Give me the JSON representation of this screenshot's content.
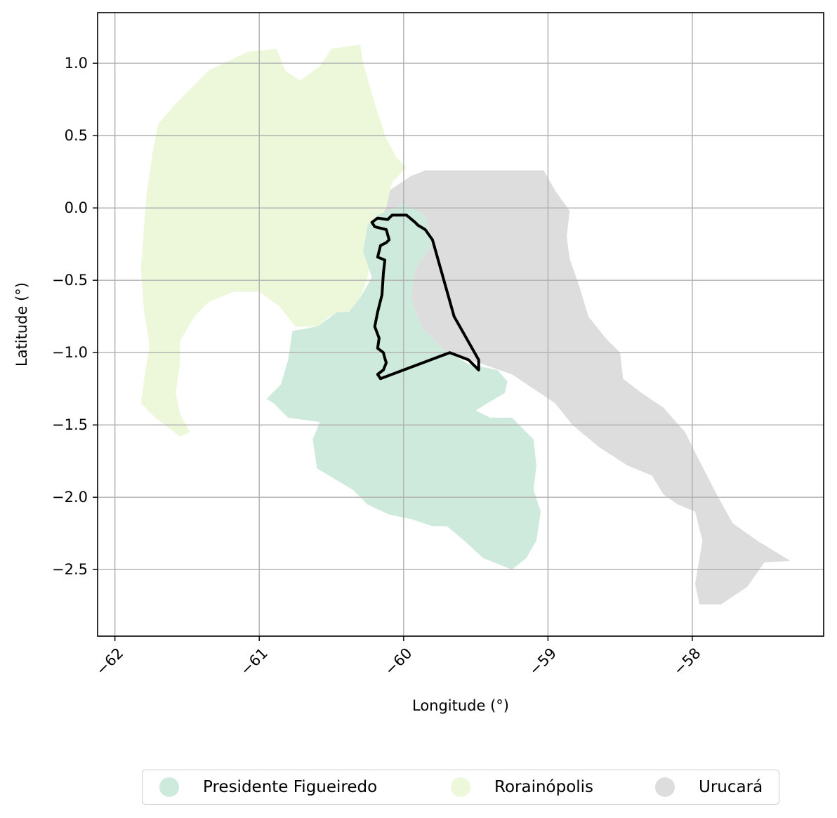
{
  "chart_data": {
    "type": "map",
    "xlabel": "Longitude (°)",
    "ylabel": "Latitude (°)",
    "xlim": [
      -62.12,
      -57.09
    ],
    "ylim": [
      -2.96,
      1.35
    ],
    "xticks": [
      -62,
      -61,
      -60,
      -59,
      -58
    ],
    "xtick_labels": [
      "−62",
      "−61",
      "−60",
      "−59",
      "−58"
    ],
    "yticks": [
      1.0,
      0.5,
      0.0,
      -0.5,
      -1.0,
      -1.5,
      -2.0,
      -2.5
    ],
    "ytick_labels": [
      "1.0",
      "0.5",
      "0.0",
      "−0.5",
      "−1.0",
      "−1.5",
      "−2.0",
      "−2.5"
    ],
    "grid": true,
    "legend_position": "bottom-center",
    "regions": [
      {
        "name": "Urucará",
        "color": "#dddddd",
        "polygon": [
          [
            -59.85,
            0.26
          ],
          [
            -59.03,
            0.26
          ],
          [
            -58.95,
            0.12
          ],
          [
            -58.85,
            -0.02
          ],
          [
            -58.87,
            -0.2
          ],
          [
            -58.85,
            -0.35
          ],
          [
            -58.78,
            -0.55
          ],
          [
            -58.72,
            -0.75
          ],
          [
            -58.6,
            -0.9
          ],
          [
            -58.5,
            -1.0
          ],
          [
            -58.48,
            -1.18
          ],
          [
            -58.35,
            -1.28
          ],
          [
            -58.2,
            -1.38
          ],
          [
            -58.05,
            -1.55
          ],
          [
            -57.95,
            -1.75
          ],
          [
            -57.82,
            -2.0
          ],
          [
            -57.72,
            -2.18
          ],
          [
            -57.55,
            -2.3
          ],
          [
            -57.32,
            -2.44
          ],
          [
            -57.5,
            -2.45
          ],
          [
            -57.62,
            -2.62
          ],
          [
            -57.8,
            -2.74
          ],
          [
            -57.95,
            -2.74
          ],
          [
            -57.98,
            -2.6
          ],
          [
            -57.93,
            -2.3
          ],
          [
            -57.98,
            -2.1
          ],
          [
            -58.1,
            -2.05
          ],
          [
            -58.2,
            -1.98
          ],
          [
            -58.28,
            -1.85
          ],
          [
            -58.45,
            -1.78
          ],
          [
            -58.65,
            -1.65
          ],
          [
            -58.83,
            -1.5
          ],
          [
            -58.95,
            -1.35
          ],
          [
            -59.1,
            -1.25
          ],
          [
            -59.25,
            -1.15
          ],
          [
            -59.45,
            -1.08
          ],
          [
            -59.7,
            -1.0
          ],
          [
            -59.88,
            -0.82
          ],
          [
            -59.95,
            -0.62
          ],
          [
            -59.92,
            -0.42
          ],
          [
            -59.8,
            -0.25
          ],
          [
            -59.85,
            -0.05
          ],
          [
            -60.0,
            0.02
          ],
          [
            -60.15,
            -0.05
          ],
          [
            -60.1,
            0.12
          ],
          [
            -59.95,
            0.22
          ]
        ]
      },
      {
        "name": "Rorainópolis",
        "color": "#edf8da",
        "polygon": [
          [
            -61.35,
            0.95
          ],
          [
            -61.08,
            1.08
          ],
          [
            -60.88,
            1.1
          ],
          [
            -60.82,
            0.95
          ],
          [
            -60.72,
            0.88
          ],
          [
            -60.58,
            0.98
          ],
          [
            -60.5,
            1.1
          ],
          [
            -60.3,
            1.13
          ],
          [
            -60.28,
            1.0
          ],
          [
            -60.2,
            0.72
          ],
          [
            -60.12,
            0.48
          ],
          [
            -60.05,
            0.35
          ],
          [
            -59.98,
            0.28
          ],
          [
            -60.08,
            0.18
          ],
          [
            -60.12,
            0.0
          ],
          [
            -60.18,
            -0.12
          ],
          [
            -60.22,
            -0.32
          ],
          [
            -60.25,
            -0.48
          ],
          [
            -60.3,
            -0.62
          ],
          [
            -60.38,
            -0.72
          ],
          [
            -60.52,
            -0.75
          ],
          [
            -60.6,
            -0.82
          ],
          [
            -60.75,
            -0.82
          ],
          [
            -60.86,
            -0.68
          ],
          [
            -61.0,
            -0.58
          ],
          [
            -61.18,
            -0.58
          ],
          [
            -61.35,
            -0.65
          ],
          [
            -61.45,
            -0.75
          ],
          [
            -61.55,
            -0.92
          ],
          [
            -61.55,
            -1.08
          ],
          [
            -61.58,
            -1.28
          ],
          [
            -61.55,
            -1.42
          ],
          [
            -61.48,
            -1.55
          ],
          [
            -61.55,
            -1.58
          ],
          [
            -61.72,
            -1.45
          ],
          [
            -61.82,
            -1.35
          ],
          [
            -61.8,
            -1.2
          ],
          [
            -61.76,
            -0.95
          ],
          [
            -61.8,
            -0.7
          ],
          [
            -61.82,
            -0.42
          ],
          [
            -61.8,
            -0.15
          ],
          [
            -61.78,
            0.1
          ],
          [
            -61.74,
            0.38
          ],
          [
            -61.7,
            0.58
          ],
          [
            -61.58,
            0.72
          ],
          [
            -61.45,
            0.85
          ]
        ]
      },
      {
        "name": "Presidente Figueiredo",
        "color": "#ceeadc",
        "polygon": [
          [
            -60.18,
            -0.05
          ],
          [
            -60.0,
            0.03
          ],
          [
            -59.85,
            -0.05
          ],
          [
            -59.8,
            -0.25
          ],
          [
            -59.92,
            -0.42
          ],
          [
            -59.95,
            -0.62
          ],
          [
            -59.88,
            -0.82
          ],
          [
            -59.72,
            -0.98
          ],
          [
            -59.55,
            -1.08
          ],
          [
            -59.35,
            -1.12
          ],
          [
            -59.28,
            -1.2
          ],
          [
            -59.3,
            -1.28
          ],
          [
            -59.42,
            -1.35
          ],
          [
            -59.5,
            -1.4
          ],
          [
            -59.4,
            -1.45
          ],
          [
            -59.25,
            -1.45
          ],
          [
            -59.1,
            -1.6
          ],
          [
            -59.08,
            -1.78
          ],
          [
            -59.1,
            -1.95
          ],
          [
            -59.05,
            -2.1
          ],
          [
            -59.08,
            -2.3
          ],
          [
            -59.15,
            -2.42
          ],
          [
            -59.25,
            -2.5
          ],
          [
            -59.45,
            -2.42
          ],
          [
            -59.58,
            -2.3
          ],
          [
            -59.7,
            -2.2
          ],
          [
            -59.75,
            -2.2
          ],
          [
            -59.8,
            -2.2
          ],
          [
            -59.95,
            -2.15
          ],
          [
            -60.1,
            -2.12
          ],
          [
            -60.25,
            -2.05
          ],
          [
            -60.35,
            -1.95
          ],
          [
            -60.6,
            -1.8
          ],
          [
            -60.63,
            -1.6
          ],
          [
            -60.58,
            -1.48
          ],
          [
            -60.8,
            -1.45
          ],
          [
            -60.9,
            -1.35
          ],
          [
            -60.95,
            -1.32
          ],
          [
            -60.85,
            -1.22
          ],
          [
            -60.8,
            -1.05
          ],
          [
            -60.77,
            -0.85
          ],
          [
            -60.6,
            -0.82
          ],
          [
            -60.46,
            -0.72
          ],
          [
            -60.38,
            -0.72
          ],
          [
            -60.3,
            -0.62
          ],
          [
            -60.22,
            -0.48
          ],
          [
            -60.28,
            -0.3
          ],
          [
            -60.25,
            -0.12
          ]
        ]
      }
    ],
    "outline": {
      "color": "#000000",
      "polygon": [
        [
          -59.98,
          -0.05
        ],
        [
          -60.08,
          -0.05
        ],
        [
          -60.11,
          -0.08
        ],
        [
          -60.18,
          -0.07
        ],
        [
          -60.22,
          -0.1
        ],
        [
          -60.2,
          -0.13
        ],
        [
          -60.12,
          -0.15
        ],
        [
          -60.1,
          -0.22
        ],
        [
          -60.12,
          -0.24
        ],
        [
          -60.16,
          -0.26
        ],
        [
          -60.18,
          -0.34
        ],
        [
          -60.13,
          -0.36
        ],
        [
          -60.14,
          -0.45
        ],
        [
          -60.15,
          -0.6
        ],
        [
          -60.18,
          -0.72
        ],
        [
          -60.2,
          -0.82
        ],
        [
          -60.17,
          -0.9
        ],
        [
          -60.18,
          -0.97
        ],
        [
          -60.14,
          -1.0
        ],
        [
          -60.13,
          -1.04
        ],
        [
          -60.12,
          -1.07
        ],
        [
          -60.14,
          -1.12
        ],
        [
          -60.18,
          -1.15
        ],
        [
          -60.16,
          -1.18
        ],
        [
          -59.68,
          -1.0
        ],
        [
          -59.55,
          -1.05
        ],
        [
          -59.48,
          -1.12
        ],
        [
          -59.48,
          -1.05
        ],
        [
          -59.65,
          -0.75
        ],
        [
          -59.8,
          -0.22
        ],
        [
          -59.85,
          -0.15
        ],
        [
          -59.9,
          -0.12
        ],
        [
          -59.92,
          -0.1
        ]
      ]
    }
  },
  "legend": {
    "items": [
      {
        "label": "Presidente Figueiredo",
        "color": "#ceeadc"
      },
      {
        "label": "Rorainópolis",
        "color": "#edf8da"
      },
      {
        "label": "Urucará",
        "color": "#dddddd"
      }
    ]
  }
}
